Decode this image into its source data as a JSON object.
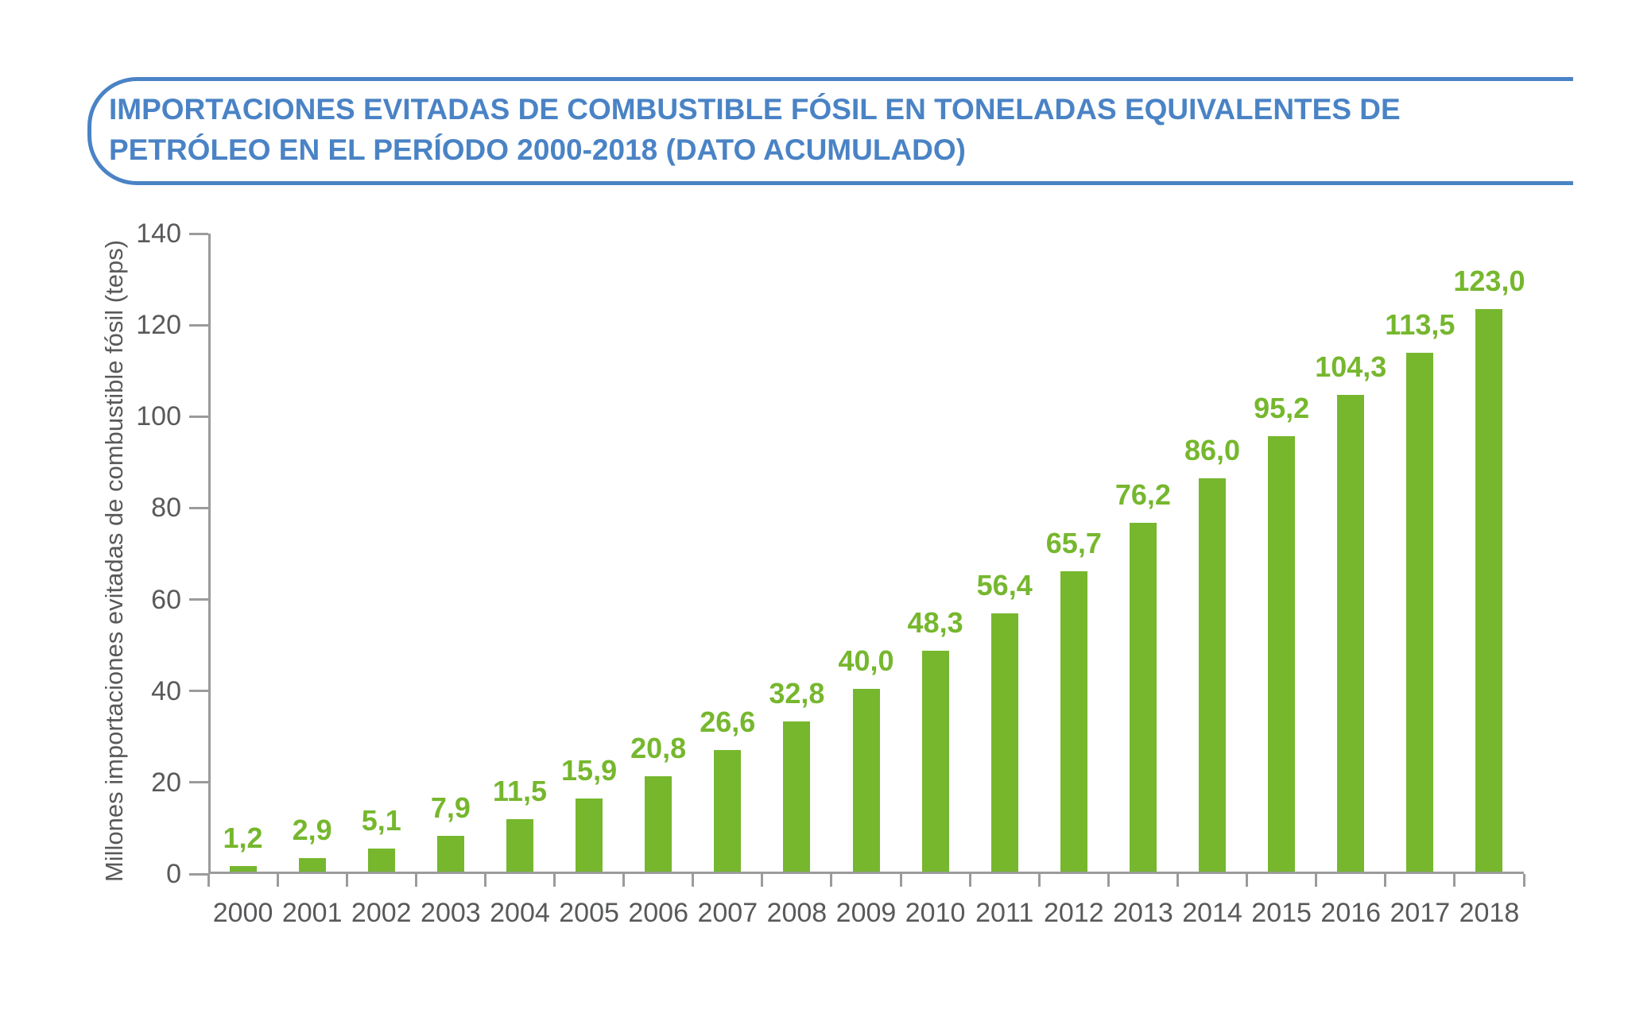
{
  "title": {
    "line1": "IMPORTACIONES EVITADAS DE COMBUSTIBLE FÓSIL EN TONELADAS EQUIVALENTES DE",
    "line2": "PETRÓLEO EN EL PERÍODO 2000-2018 (DATO ACUMULADO)"
  },
  "colors": {
    "title_blue": "#4a83c5",
    "bar_green": "#76b72e",
    "axis_line_gray": "#9b9b9b",
    "axis_text_gray": "#58595b",
    "background": "#ffffff"
  },
  "chart_data": {
    "type": "bar",
    "title": "IMPORTACIONES EVITADAS DE COMBUSTIBLE FÓSIL EN TONELADAS EQUIVALENTES DE PETRÓLEO EN EL PERÍODO 2000-2018 (DATO ACUMULADO)",
    "categories": [
      "2000",
      "2001",
      "2002",
      "2003",
      "2004",
      "2005",
      "2006",
      "2007",
      "2008",
      "2009",
      "2010",
      "2011",
      "2012",
      "2013",
      "2014",
      "2015",
      "2016",
      "2017",
      "2018"
    ],
    "values": [
      1.2,
      2.9,
      5.1,
      7.9,
      11.5,
      15.9,
      20.8,
      26.6,
      32.8,
      40.0,
      48.3,
      56.4,
      65.7,
      76.2,
      86.0,
      95.2,
      104.3,
      113.5,
      123.0
    ],
    "value_labels": [
      "1,2",
      "2,9",
      "5,1",
      "7,9",
      "11,5",
      "15,9",
      "20,8",
      "26,6",
      "32,8",
      "40,0",
      "48,3",
      "56,4",
      "65,7",
      "76,2",
      "86,0",
      "95,2",
      "104,3",
      "113,5",
      "123,0"
    ],
    "xlabel": "",
    "ylabel": "Millones importaciones evitadas de combustible fósil (teps)",
    "ylim": [
      0,
      140
    ],
    "y_ticks": [
      0,
      20,
      40,
      60,
      80,
      100,
      120,
      140
    ],
    "grid": false,
    "legend_position": "none",
    "bar_color": "#76b72e",
    "value_label_color": "#76b72e",
    "decimal_separator": ","
  }
}
